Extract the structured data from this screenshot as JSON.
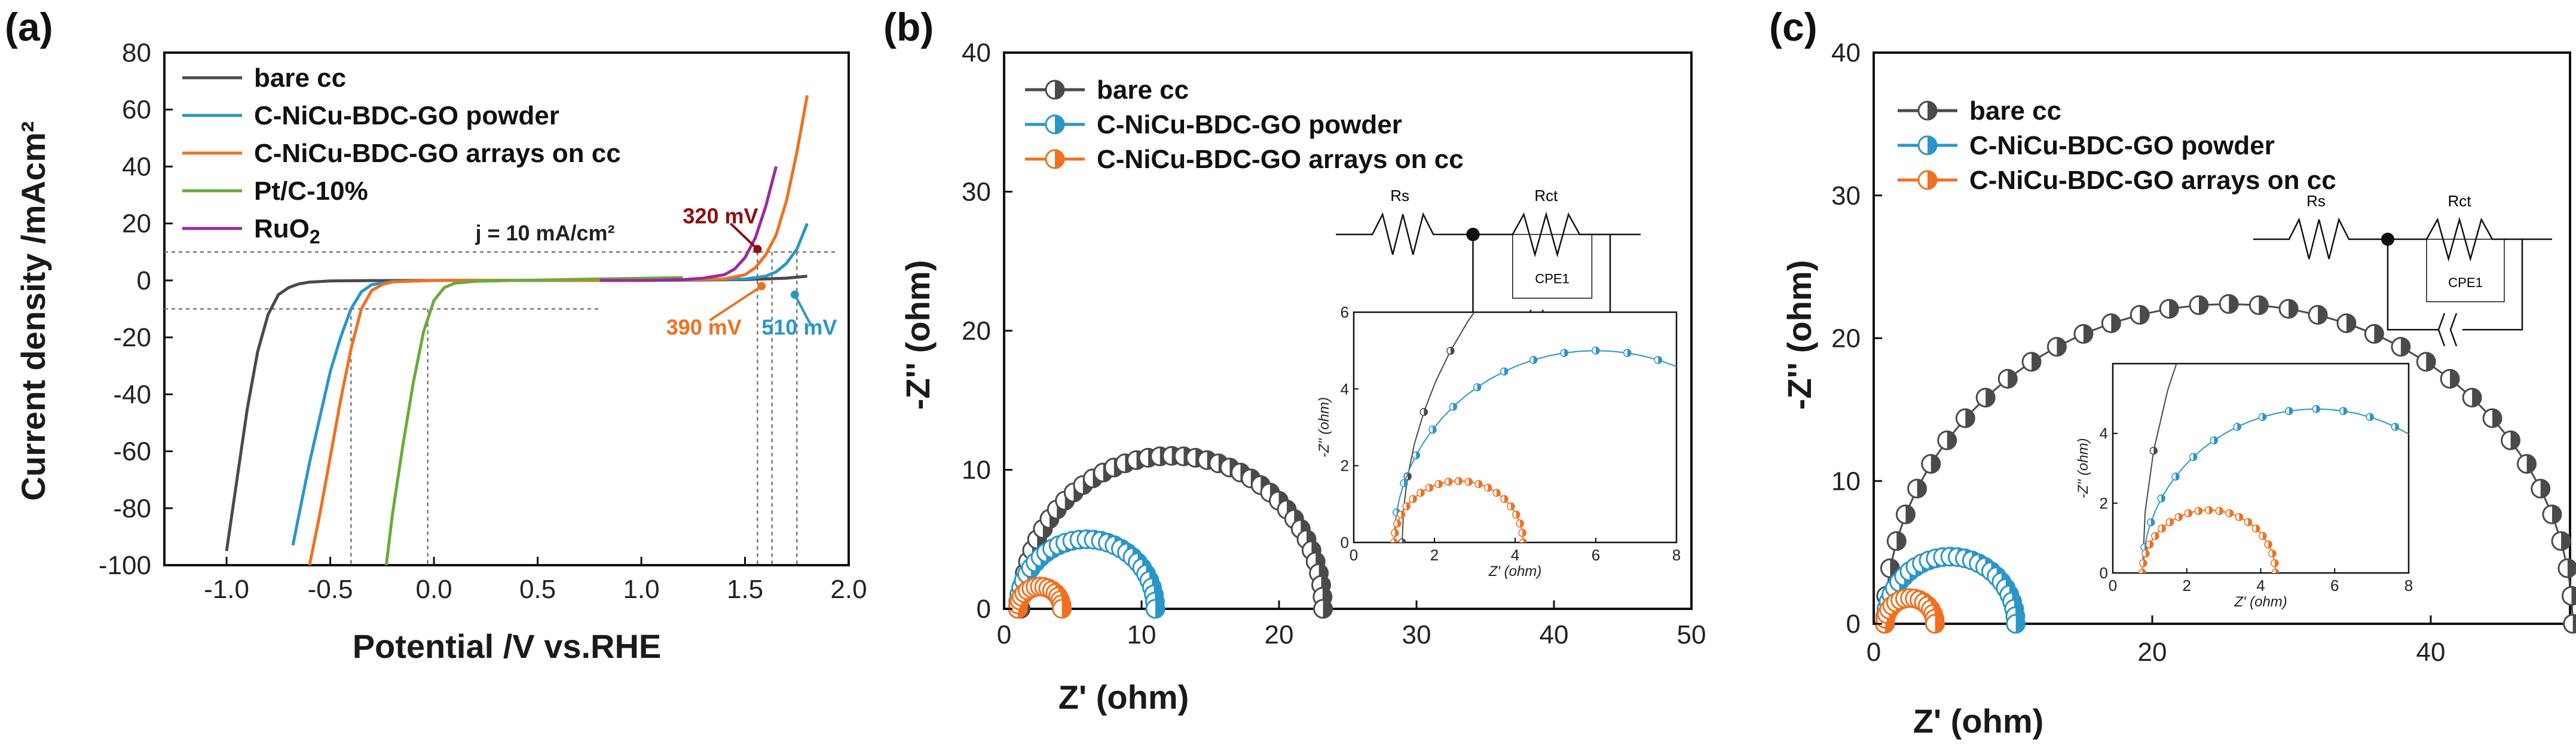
{
  "colors": {
    "bare": "#4a4a4a",
    "powder": "#2a95c8",
    "arrays": "#f07020",
    "ptc": "#6aaa3a",
    "ruo2": "#9a2aa0",
    "ann320": "#8b1010",
    "ann390": "#f07020",
    "ann510": "#2a95c8"
  },
  "chart_data": [
    {
      "id": "a",
      "type": "line",
      "panel_label": "(a)",
      "xlabel": "Potential /V vs.RHE",
      "ylabel": "Current density /mAcm²",
      "xlim": [
        -1.3,
        2.0
      ],
      "ylim": [
        -100,
        80
      ],
      "xticks": [
        -1.0,
        -0.5,
        0.0,
        0.5,
        1.0,
        1.5,
        2.0
      ],
      "xtick_labels": [
        "-1.0",
        "-0.5",
        "0.0",
        "0.5",
        "1.0",
        "1.5",
        "2.0"
      ],
      "yticks": [
        -100,
        -80,
        -60,
        -40,
        -20,
        0,
        20,
        40,
        60,
        80
      ],
      "ytick_labels": [
        "-100",
        "-80",
        "-60",
        "-40",
        "-20",
        "0",
        "20",
        "40",
        "60",
        "80"
      ],
      "legend": [
        "bare cc",
        "C-NiCu-BDC-GO powder",
        "C-NiCu-BDC-GO arrays on cc",
        "Pt/C-10%",
        "RuO2"
      ],
      "legend_position": "top-left",
      "series": [
        {
          "name": "bare cc",
          "color_key": "bare",
          "x": [
            -1.0,
            -0.95,
            -0.9,
            -0.85,
            -0.8,
            -0.75,
            -0.7,
            -0.65,
            -0.6,
            -0.5,
            -0.3,
            0.0,
            0.5,
            1.0,
            1.5,
            1.7,
            1.8
          ],
          "y": [
            -95,
            -70,
            -45,
            -25,
            -12,
            -5,
            -2.5,
            -1.2,
            -0.6,
            -0.2,
            -0.05,
            0,
            0,
            0,
            0.3,
            0.8,
            1.5
          ]
        },
        {
          "name": "C-NiCu-BDC-GO powder",
          "color_key": "powder",
          "x": [
            -0.68,
            -0.65,
            -0.6,
            -0.55,
            -0.5,
            -0.45,
            -0.4,
            -0.35,
            -0.3,
            -0.2,
            0.0,
            0.5,
            1.0,
            1.5,
            1.6,
            1.65,
            1.7,
            1.75,
            1.8
          ],
          "y": [
            -93,
            -82,
            -64,
            -48,
            -32,
            -20,
            -10,
            -4,
            -1.5,
            -0.4,
            0,
            0,
            0,
            0.5,
            1.5,
            3,
            6,
            11,
            20
          ]
        },
        {
          "name": "C-NiCu-BDC-GO arrays on cc",
          "color_key": "arrays",
          "x": [
            -0.6,
            -0.55,
            -0.5,
            -0.45,
            -0.4,
            -0.35,
            -0.3,
            -0.25,
            -0.2,
            0.0,
            0.5,
            1.0,
            1.4,
            1.5,
            1.55,
            1.6,
            1.65,
            1.7,
            1.75,
            1.8
          ],
          "y": [
            -100,
            -82,
            -62,
            -42,
            -24,
            -10,
            -3.5,
            -1.5,
            -0.5,
            0,
            0,
            0,
            0.5,
            2,
            4.5,
            9,
            16,
            28,
            45,
            65
          ]
        },
        {
          "name": "Pt/C-10%",
          "color_key": "ptc",
          "x": [
            -0.23,
            -0.2,
            -0.15,
            -0.1,
            -0.05,
            0.0,
            0.05,
            0.1,
            0.2,
            0.4,
            0.8,
            1.2
          ],
          "y": [
            -100,
            -82,
            -58,
            -36,
            -18,
            -7,
            -2.5,
            -1,
            -0.3,
            0,
            0.5,
            1
          ]
        },
        {
          "name": "RuO2",
          "color_key": "ruo2",
          "x": [
            0.8,
            1.0,
            1.2,
            1.3,
            1.4,
            1.45,
            1.5,
            1.55,
            1.6,
            1.65
          ],
          "y": [
            0,
            0,
            0.3,
            0.8,
            2,
            4,
            8,
            15,
            26,
            40
          ]
        }
      ],
      "reference_lines_y": [
        10,
        -10
      ],
      "reference_lines_x": [
        -0.4,
        -0.03,
        1.56,
        1.63,
        1.75
      ],
      "annotations": [
        {
          "text": "j = 10 mA/cm²",
          "x": 0.2,
          "y": 14,
          "color_key": "bare"
        },
        {
          "text": "320 mV",
          "x": 1.2,
          "y": 20,
          "color_key": "ann320"
        },
        {
          "text": "390 mV",
          "x": 1.12,
          "y": -19,
          "color_key": "ann390"
        },
        {
          "text": "510 mV",
          "x": 1.58,
          "y": -19,
          "color_key": "ann510"
        }
      ]
    },
    {
      "id": "b",
      "type": "scatter",
      "panel_label": "(b)",
      "xlabel": "Z' (ohm)",
      "ylabel": "-Z'' (ohm)",
      "xlim": [
        0,
        50
      ],
      "ylim": [
        0,
        40
      ],
      "xticks": [
        0,
        10,
        20,
        30,
        40,
        50
      ],
      "xtick_labels": [
        "0",
        "10",
        "20",
        "30",
        "40",
        "50"
      ],
      "yticks": [
        0,
        10,
        20,
        30,
        40
      ],
      "ytick_labels": [
        "0",
        "10",
        "20",
        "30",
        "40"
      ],
      "legend": [
        "bare cc",
        "C-NiCu-BDC-GO powder",
        "C-NiCu-BDC-GO arrays on cc"
      ],
      "legend_position": "top-left",
      "circuit_labels": [
        "Rs",
        "Rct",
        "CPE1"
      ],
      "series": [
        {
          "name": "bare cc",
          "color_key": "bare",
          "semicircle": {
            "x_start": 1.2,
            "x_end": 23.2,
            "points": 40
          }
        },
        {
          "name": "C-NiCu-BDC-GO powder",
          "color_key": "powder",
          "semicircle": {
            "x_start": 1.0,
            "x_end": 11.0,
            "points": 30
          }
        },
        {
          "name": "C-NiCu-BDC-GO arrays on cc",
          "color_key": "arrays",
          "semicircle": {
            "x_start": 1.0,
            "x_end": 4.2,
            "points": 16
          }
        }
      ],
      "inset": {
        "xlabel": "Z' (ohm)",
        "ylabel": "-Z'' (ohm)",
        "xlim": [
          0,
          8
        ],
        "ylim": [
          0,
          6
        ],
        "xticks": [
          0,
          2,
          4,
          6,
          8
        ],
        "yticks": [
          0,
          2,
          4,
          6
        ],
        "xtick_labels": [
          "0",
          "2",
          "4",
          "6",
          "8"
        ],
        "ytick_labels": [
          "0",
          "2",
          "4",
          "6"
        ]
      }
    },
    {
      "id": "c",
      "type": "scatter",
      "panel_label": "(c)",
      "xlabel": "Z' (ohm)",
      "ylabel": "-Z'' (ohm)",
      "xlim": [
        0,
        50
      ],
      "ylim": [
        0,
        40
      ],
      "xticks": [
        0,
        20,
        40
      ],
      "xtick_labels": [
        "0",
        "20",
        "40"
      ],
      "yticks": [
        0,
        10,
        20,
        30,
        40
      ],
      "ytick_labels": [
        "0",
        "10",
        "20",
        "30",
        "40"
      ],
      "legend": [
        "bare cc",
        "C-NiCu-BDC-GO powder",
        "C-NiCu-BDC-GO arrays on cc"
      ],
      "legend_position": "top-left",
      "circuit_labels": [
        "Rs",
        "Rct",
        "CPE1"
      ],
      "series": [
        {
          "name": "bare cc",
          "color_key": "bare",
          "semicircle": {
            "x_start": 0.8,
            "x_end": 50.2,
            "points": 36,
            "height": 22.4
          }
        },
        {
          "name": "C-NiCu-BDC-GO powder",
          "color_key": "powder",
          "semicircle": {
            "x_start": 0.8,
            "x_end": 10.2,
            "points": 28
          }
        },
        {
          "name": "C-NiCu-BDC-GO arrays on cc",
          "color_key": "arrays",
          "semicircle": {
            "x_start": 0.8,
            "x_end": 4.4,
            "points": 16
          }
        }
      ],
      "inset": {
        "xlabel": "Z' (ohm)",
        "ylabel": "-Z'' (ohm)",
        "xlim": [
          0,
          8
        ],
        "ylim": [
          0,
          6
        ],
        "xticks": [
          0,
          2,
          4,
          6,
          8
        ],
        "yticks": [
          0,
          2,
          4
        ],
        "xtick_labels": [
          "0",
          "2",
          "4",
          "6",
          "8"
        ],
        "ytick_labels": [
          "0",
          "2",
          "4"
        ]
      }
    }
  ]
}
